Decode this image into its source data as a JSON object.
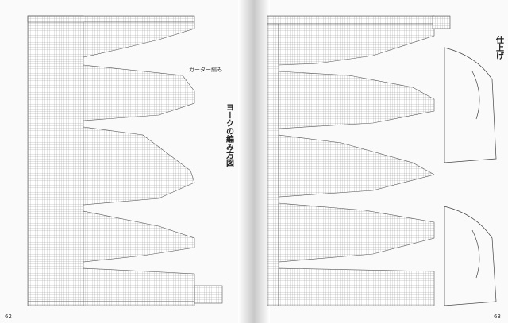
{
  "left_page": {
    "title": "ヨークの編み方図",
    "label": "ガーター編み",
    "page_number": "62"
  },
  "right_page": {
    "title": "仕上げ",
    "page_number": "63"
  }
}
